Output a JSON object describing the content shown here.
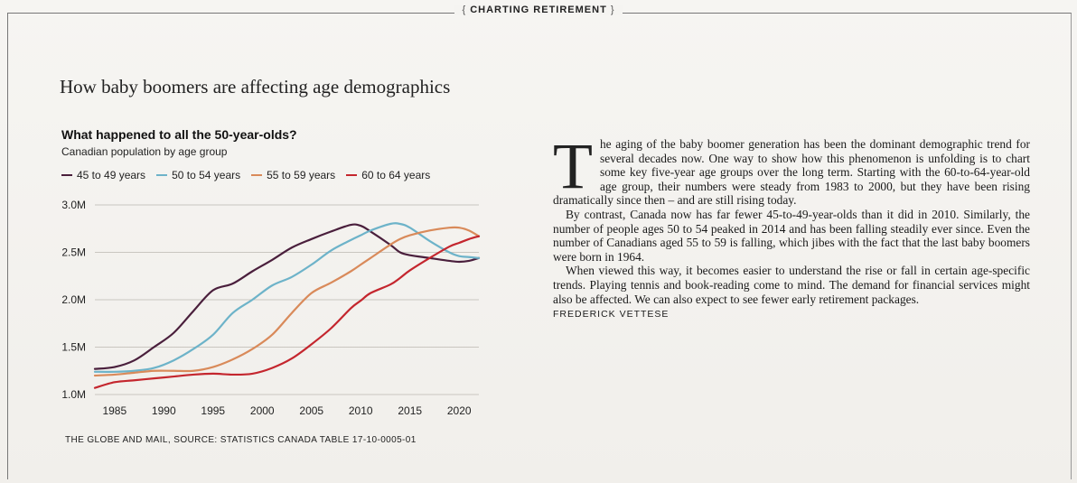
{
  "section_header": "CHARTING RETIREMENT",
  "headline": "How baby boomers are affecting age demographics",
  "source": "THE GLOBE AND MAIL, SOURCE: STATISTICS CANADA TABLE 17-10-0005-01",
  "article": {
    "dropcap": "T",
    "paragraphs": [
      "he aging of the baby boomer generation has been the dominant demographic trend for several decades now. One way to show how this phenomenon is unfolding is to chart some key five-year age groups over the long term. Starting with the 60-to-64-year-old age group, their numbers were steady from 1983 to 2000, but they have been rising dramatically since then – and are still rising today.",
      "By contrast, Canada now has far fewer 45-to-49-year-olds than it did in 2010. Similarly, the number of people ages 50 to 54 peaked in 2014 and has been falling steadily ever since. Even the number of Canadians aged 55 to 59 is falling, which jibes with the fact that the last baby boomers were born in 1964.",
      "When viewed this way, it becomes easier to understand the rise or fall in certain age-specific trends. Playing tennis and book-reading come to mind. The demand for financial services might also be affected. We can also expect to see fewer early retirement packages."
    ],
    "byline": "FREDERICK VETTESE"
  },
  "chart_data": {
    "type": "line",
    "title": "What happened to all the 50-year-olds?",
    "subtitle": "Canadian population by age group",
    "xlabel": "",
    "ylabel": "",
    "xlim": [
      1983,
      2022
    ],
    "ylim": [
      1.0,
      3.0
    ],
    "x_ticks": [
      1985,
      1990,
      1995,
      2000,
      2005,
      2010,
      2015,
      2020
    ],
    "y_ticks": [
      {
        "value": 1.0,
        "label": "1.0M"
      },
      {
        "value": 1.5,
        "label": "1.5M"
      },
      {
        "value": 2.0,
        "label": "2.0M"
      },
      {
        "value": 2.5,
        "label": "2.5M"
      },
      {
        "value": 3.0,
        "label": "3.0M"
      }
    ],
    "grid": true,
    "legend_position": "top",
    "x": [
      1983,
      1985,
      1987,
      1989,
      1991,
      1993,
      1995,
      1997,
      1999,
      2001,
      2003,
      2005,
      2007,
      2009,
      2010,
      2011,
      2013,
      2014,
      2015,
      2017,
      2019,
      2020,
      2021,
      2022
    ],
    "series": [
      {
        "name": "45 to 49 years",
        "color": "#4a1f3c",
        "values": [
          1.27,
          1.29,
          1.36,
          1.5,
          1.65,
          1.88,
          2.1,
          2.17,
          2.3,
          2.42,
          2.55,
          2.64,
          2.72,
          2.79,
          2.78,
          2.72,
          2.58,
          2.5,
          2.47,
          2.44,
          2.41,
          2.4,
          2.41,
          2.44
        ]
      },
      {
        "name": "50 to 54 years",
        "color": "#6db3c9",
        "values": [
          1.24,
          1.24,
          1.25,
          1.28,
          1.36,
          1.48,
          1.63,
          1.86,
          2.0,
          2.15,
          2.24,
          2.37,
          2.52,
          2.63,
          2.68,
          2.73,
          2.8,
          2.8,
          2.76,
          2.62,
          2.5,
          2.46,
          2.45,
          2.44
        ]
      },
      {
        "name": "55 to 59 years",
        "color": "#d98a5a",
        "values": [
          1.2,
          1.21,
          1.23,
          1.25,
          1.25,
          1.25,
          1.29,
          1.37,
          1.48,
          1.63,
          1.86,
          2.07,
          2.18,
          2.3,
          2.37,
          2.44,
          2.58,
          2.64,
          2.68,
          2.73,
          2.76,
          2.76,
          2.73,
          2.67
        ]
      },
      {
        "name": "60 to 64 years",
        "color": "#c4262e",
        "values": [
          1.07,
          1.13,
          1.15,
          1.17,
          1.19,
          1.21,
          1.22,
          1.21,
          1.22,
          1.28,
          1.38,
          1.53,
          1.7,
          1.91,
          1.99,
          2.07,
          2.16,
          2.23,
          2.31,
          2.44,
          2.56,
          2.6,
          2.64,
          2.67
        ]
      }
    ]
  }
}
